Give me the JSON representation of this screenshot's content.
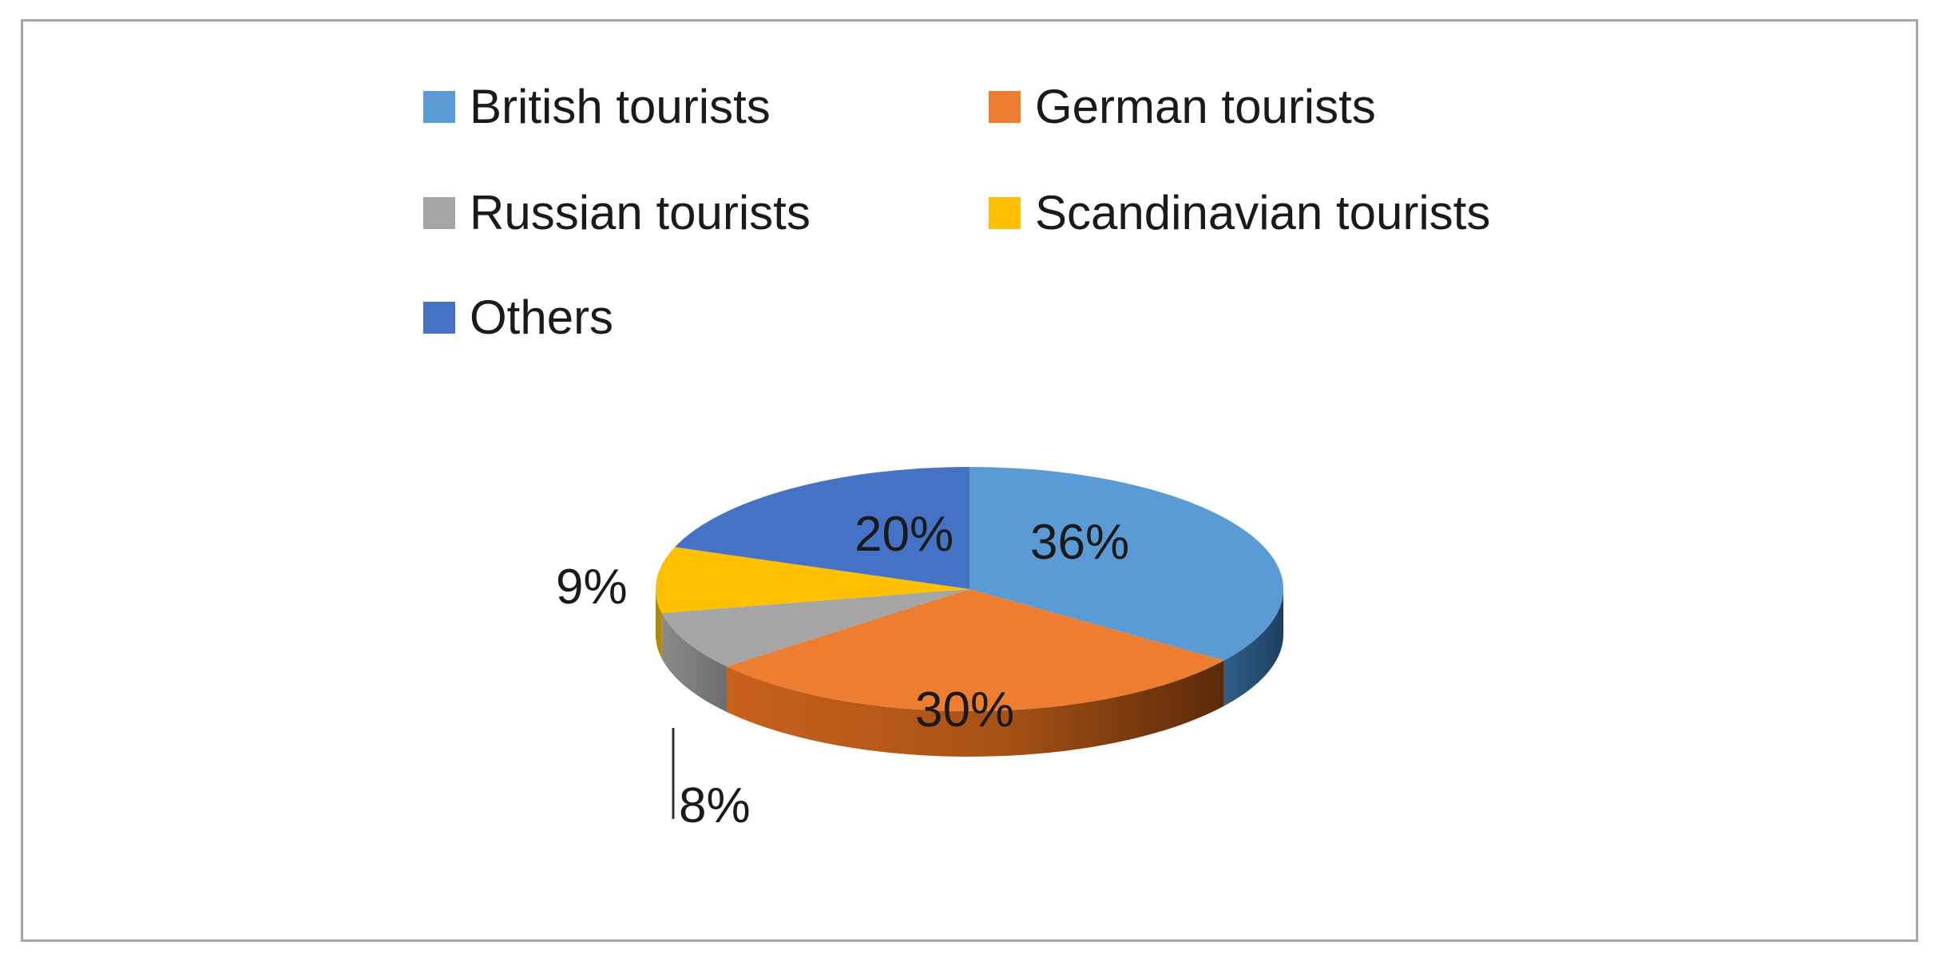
{
  "chart_data": {
    "type": "pie",
    "variant": "3d",
    "legend_position": "top",
    "slices": [
      {
        "name": "British tourists",
        "value": 36,
        "label": "36%",
        "color": "#5b9bd5"
      },
      {
        "name": "German tourists",
        "value": 30,
        "label": "30%",
        "color": "#ed7d31"
      },
      {
        "name": "Russian tourists",
        "value": 8,
        "label": "8%",
        "color": "#a5a5a5"
      },
      {
        "name": "Scandinavian tourists",
        "value": 9,
        "label": "9%",
        "color": "#ffc000"
      },
      {
        "name": "Others",
        "value": 20,
        "label": "20%",
        "color": "#4472c4"
      }
    ]
  }
}
